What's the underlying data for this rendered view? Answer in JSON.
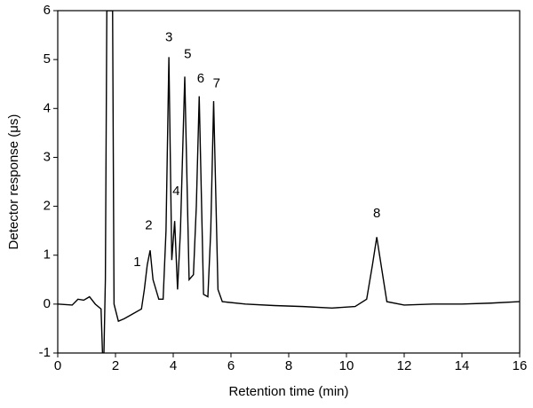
{
  "chart_data": {
    "type": "line",
    "x_label": "Retention time (min)",
    "y_label": "Detector response (μs)",
    "xlim": [
      0,
      16
    ],
    "xticks": [
      0,
      2,
      4,
      6,
      8,
      10,
      12,
      14,
      16
    ],
    "ylim": [
      -1,
      6
    ],
    "yticks": [
      -1,
      0,
      1,
      2,
      3,
      4,
      5,
      6
    ],
    "grid": false,
    "series": [
      {
        "color": "#000000",
        "x": [
          0,
          0.5,
          0.7,
          0.9,
          1.1,
          1.3,
          1.5,
          1.55,
          1.6,
          1.65,
          1.7,
          1.9,
          1.95,
          2.1,
          2.3,
          2.6,
          2.9,
          3.0,
          3.1,
          3.2,
          3.3,
          3.5,
          3.65,
          3.75,
          3.85,
          3.95,
          4.05,
          4.15,
          4.25,
          4.4,
          4.55,
          4.7,
          4.8,
          4.9,
          5.05,
          5.2,
          5.3,
          5.4,
          5.55,
          5.7,
          6.5,
          7.5,
          8.5,
          9.5,
          10.3,
          10.7,
          10.9,
          11.05,
          11.2,
          11.4,
          12,
          13,
          14,
          15,
          16
        ],
        "values": [
          0,
          -0.02,
          0.1,
          0.08,
          0.15,
          0,
          -0.1,
          -1,
          -1,
          0.5,
          6,
          6,
          0,
          -0.35,
          -0.3,
          -0.2,
          -0.1,
          0.3,
          0.8,
          1.1,
          0.5,
          0.1,
          0.1,
          1.5,
          5.05,
          0.9,
          1.7,
          0.3,
          1.5,
          4.65,
          0.5,
          0.6,
          2,
          4.25,
          0.2,
          0.15,
          1.5,
          4.15,
          0.3,
          0.05,
          0,
          -0.03,
          -0.05,
          -0.08,
          -0.05,
          0.1,
          0.8,
          1.37,
          0.8,
          0.05,
          -0.02,
          0,
          0,
          0.02,
          0.05
        ]
      }
    ],
    "annotations": [
      {
        "text": "1",
        "x": 2.75,
        "y": 0.85
      },
      {
        "text": "2",
        "x": 3.15,
        "y": 1.6
      },
      {
        "text": "3",
        "x": 3.85,
        "y": 5.45
      },
      {
        "text": "4",
        "x": 4.1,
        "y": 2.3
      },
      {
        "text": "5",
        "x": 4.5,
        "y": 5.1
      },
      {
        "text": "6",
        "x": 4.95,
        "y": 4.6
      },
      {
        "text": "7",
        "x": 5.5,
        "y": 4.5
      },
      {
        "text": "8",
        "x": 11.05,
        "y": 1.85
      }
    ]
  }
}
